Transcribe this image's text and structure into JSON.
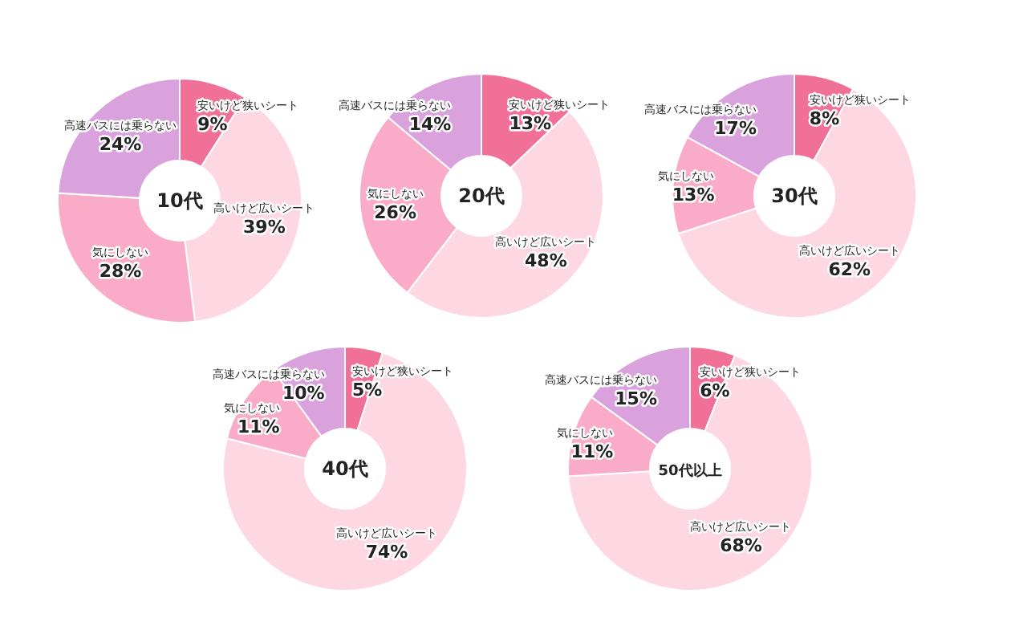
{
  "chart_data": [
    {
      "type": "donut",
      "title": "10代",
      "categories": [
        "安いけど狭いシート",
        "高いけど広いシート",
        "気にしない",
        "高速バスには乗らない"
      ],
      "values": [
        9,
        39,
        28,
        24
      ],
      "value_labels": [
        "9%",
        "39%",
        "28%",
        "24%"
      ],
      "colors": [
        "#f07098",
        "#fdd8e3",
        "#f9abc8",
        "#d9a2dd"
      ]
    },
    {
      "type": "donut",
      "title": "20代",
      "categories": [
        "安いけど狭いシート",
        "高いけど広いシート",
        "気にしない",
        "高速バスには乗らない"
      ],
      "values": [
        13,
        48,
        26,
        14
      ],
      "value_labels": [
        "13%",
        "48%",
        "26%",
        "14%"
      ],
      "colors": [
        "#f07098",
        "#fdd8e3",
        "#f9abc8",
        "#d9a2dd"
      ]
    },
    {
      "type": "donut",
      "title": "30代",
      "categories": [
        "安いけど狭いシート",
        "高いけど広いシート",
        "気にしない",
        "高速バスには乗らない"
      ],
      "values": [
        8,
        62,
        13,
        17
      ],
      "value_labels": [
        "8%",
        "62%",
        "13%",
        "17%"
      ],
      "colors": [
        "#f07098",
        "#fdd8e3",
        "#f9abc8",
        "#d9a2dd"
      ]
    },
    {
      "type": "donut",
      "title": "40代",
      "categories": [
        "安いけど狭いシート",
        "高いけど広いシート",
        "気にしない",
        "高速バスには乗らない"
      ],
      "values": [
        5,
        74,
        11,
        10
      ],
      "value_labels": [
        "5%",
        "74%",
        "11%",
        "10%"
      ],
      "colors": [
        "#f07098",
        "#fdd8e3",
        "#f9abc8",
        "#d9a2dd"
      ]
    },
    {
      "type": "donut",
      "title": "50代以上",
      "categories": [
        "安いけど狭いシート",
        "高いけど広いシート",
        "気にしない",
        "高速バスには乗らない"
      ],
      "values": [
        6,
        68,
        11,
        15
      ],
      "value_labels": [
        "6%",
        "68%",
        "11%",
        "15%"
      ],
      "colors": [
        "#f07098",
        "#fdd8e3",
        "#f9abc8",
        "#d9a2dd"
      ]
    }
  ]
}
